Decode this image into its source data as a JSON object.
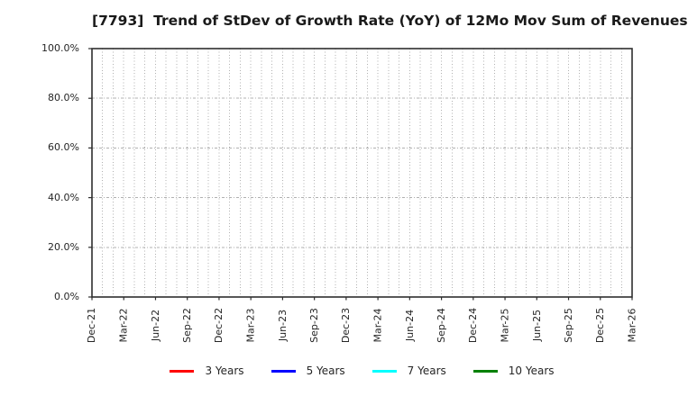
{
  "chart_data": {
    "type": "line",
    "title": "[7793]  Trend of StDev of Growth Rate (YoY) of 12Mo Mov Sum of Revenues",
    "x_tick_labels": [
      "Dec-21",
      "Mar-22",
      "Jun-22",
      "Sep-22",
      "Dec-22",
      "Mar-23",
      "Jun-23",
      "Sep-23",
      "Dec-23",
      "Mar-24",
      "Jun-24",
      "Sep-24",
      "Dec-24",
      "Mar-25",
      "Jun-25",
      "Sep-25",
      "Dec-25",
      "Mar-26"
    ],
    "x_minor_divisions_per_tick": 3,
    "y_tick_labels": [
      "0.0%",
      "20.0%",
      "40.0%",
      "60.0%",
      "80.0%",
      "100.0%"
    ],
    "y_tick_values": [
      0,
      20,
      40,
      60,
      80,
      100
    ],
    "ylim": [
      0,
      100
    ],
    "grid": true,
    "legend_position": "bottom",
    "series": [
      {
        "name": "3 Years",
        "color": "#ff0000",
        "values": []
      },
      {
        "name": "5 Years",
        "color": "#0000ff",
        "values": []
      },
      {
        "name": "7 Years",
        "color": "#00ffff",
        "values": []
      },
      {
        "name": "10 Years",
        "color": "#008000",
        "values": []
      }
    ]
  },
  "colors": {
    "background": "#ffffff",
    "grid": "#b0b0b0",
    "spine": "#2e2e2e",
    "text": "#262626",
    "title": "#1a1a1a"
  }
}
